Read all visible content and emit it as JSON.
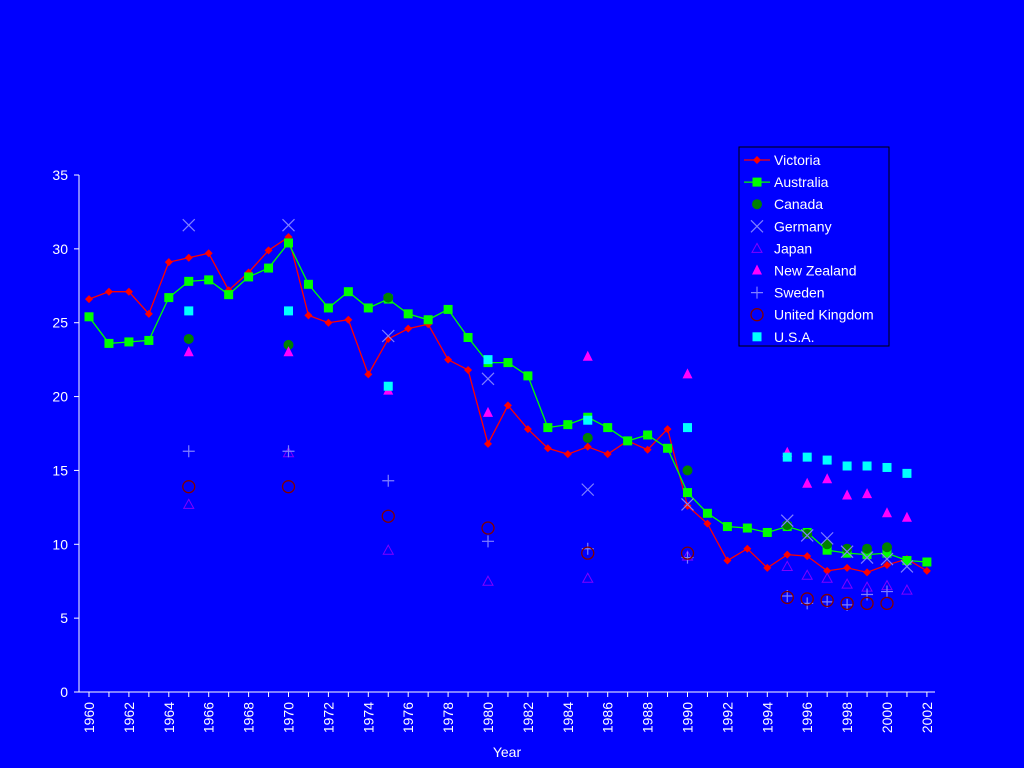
{
  "chart_data": {
    "type": "line",
    "title": "",
    "xlabel": "Year",
    "ylabel": "",
    "xlim": [
      1960,
      2002
    ],
    "ylim": [
      0,
      35
    ],
    "y_ticks": [
      0,
      5,
      10,
      15,
      20,
      25,
      30,
      35
    ],
    "x_ticks": [
      "1960",
      "1962",
      "1964",
      "1966",
      "1968",
      "1970",
      "1972",
      "1974",
      "1976",
      "1978",
      "1980",
      "1982",
      "1984",
      "1986",
      "1988",
      "1990",
      "1992",
      "1994",
      "1996",
      "1998",
      "2000",
      "2002"
    ],
    "grid": false,
    "legend_position": "top-right",
    "series": [
      {
        "name": "Victoria",
        "color": "#ff0000",
        "marker": "diamond",
        "line": true,
        "x": [
          1960,
          1961,
          1962,
          1963,
          1964,
          1965,
          1966,
          1967,
          1968,
          1969,
          1970,
          1971,
          1972,
          1973,
          1974,
          1975,
          1976,
          1977,
          1978,
          1979,
          1980,
          1981,
          1982,
          1983,
          1984,
          1985,
          1986,
          1987,
          1988,
          1989,
          1990,
          1991,
          1992,
          1993,
          1994,
          1995,
          1996,
          1997,
          1998,
          1999,
          2000,
          2001,
          2002
        ],
        "y": [
          26.6,
          27.1,
          27.1,
          25.6,
          29.1,
          29.4,
          29.7,
          27.2,
          28.4,
          29.9,
          30.8,
          25.5,
          25.0,
          25.2,
          21.5,
          23.9,
          24.6,
          24.9,
          22.5,
          21.8,
          16.8,
          19.4,
          17.8,
          16.5,
          16.1,
          16.6,
          16.1,
          17.0,
          16.4,
          17.8,
          12.6,
          11.4,
          8.9,
          9.7,
          8.4,
          9.3,
          9.2,
          8.2,
          8.4,
          8.1,
          8.6,
          9.0,
          8.2
        ]
      },
      {
        "name": "Australia",
        "color": "#00ff00",
        "marker": "square",
        "line": true,
        "x": [
          1960,
          1961,
          1962,
          1963,
          1964,
          1965,
          1966,
          1967,
          1968,
          1969,
          1970,
          1971,
          1972,
          1973,
          1974,
          1975,
          1976,
          1977,
          1978,
          1979,
          1980,
          1981,
          1982,
          1983,
          1984,
          1985,
          1986,
          1987,
          1988,
          1989,
          1990,
          1991,
          1992,
          1993,
          1994,
          1995,
          1996,
          1997,
          1998,
          1999,
          2000,
          2001,
          2002
        ],
        "y": [
          25.4,
          23.6,
          23.7,
          23.8,
          26.7,
          27.8,
          27.9,
          26.9,
          28.1,
          28.7,
          30.4,
          27.6,
          26.0,
          27.1,
          26.0,
          26.6,
          25.6,
          25.2,
          25.9,
          24.0,
          22.3,
          22.3,
          21.4,
          17.9,
          18.1,
          18.6,
          17.9,
          17.0,
          17.4,
          16.5,
          13.5,
          12.1,
          11.2,
          11.1,
          10.8,
          11.2,
          10.8,
          9.6,
          9.4,
          9.3,
          9.4,
          8.9,
          8.8
        ]
      },
      {
        "name": "Canada",
        "color": "#008000",
        "marker": "circle-filled",
        "line": false,
        "x": [
          1965,
          1970,
          1975,
          1985,
          1990,
          1995,
          1996,
          1997,
          1998,
          1999,
          2000
        ],
        "y": [
          23.9,
          23.5,
          26.7,
          17.2,
          15.0,
          11.3,
          10.7,
          10.0,
          9.7,
          9.7,
          9.8
        ]
      },
      {
        "name": "Germany",
        "color": "#8080ff",
        "marker": "x",
        "line": false,
        "x": [
          1965,
          1970,
          1975,
          1980,
          1985,
          1990,
          1995,
          1996,
          1997,
          1998,
          1999,
          2000,
          2001
        ],
        "y": [
          31.6,
          31.6,
          24.1,
          21.2,
          13.7,
          12.7,
          11.6,
          10.6,
          10.4,
          9.5,
          9.1,
          9.0,
          8.5
        ]
      },
      {
        "name": "Japan",
        "color": "#8000ff",
        "marker": "triangle-open",
        "line": false,
        "x": [
          1965,
          1970,
          1975,
          1980,
          1985,
          1990,
          1995,
          1996,
          1997,
          1998,
          1999,
          2000,
          2001
        ],
        "y": [
          12.7,
          16.2,
          9.6,
          7.5,
          7.7,
          9.2,
          8.5,
          7.9,
          7.7,
          7.3,
          7.1,
          7.2,
          6.9
        ]
      },
      {
        "name": "New Zealand",
        "color": "#ff00ff",
        "marker": "triangle-filled",
        "line": false,
        "x": [
          1965,
          1970,
          1975,
          1980,
          1985,
          1990,
          1995,
          1996,
          1997,
          1998,
          1999,
          2000,
          2001
        ],
        "y": [
          23.0,
          23.0,
          20.4,
          18.9,
          22.7,
          21.5,
          16.2,
          14.1,
          14.4,
          13.3,
          13.4,
          12.1,
          11.8
        ]
      },
      {
        "name": "Sweden",
        "color": "#8080ff",
        "marker": "plus",
        "line": false,
        "x": [
          1965,
          1970,
          1975,
          1980,
          1985,
          1990,
          1995,
          1996,
          1997,
          1998,
          1999,
          2000
        ],
        "y": [
          16.3,
          16.3,
          14.3,
          10.2,
          9.7,
          9.1,
          6.5,
          6.0,
          6.1,
          5.9,
          6.6,
          6.8
        ]
      },
      {
        "name": "United Kingdom",
        "color": "#800000",
        "marker": "circle-open",
        "line": false,
        "x": [
          1965,
          1970,
          1975,
          1980,
          1985,
          1990,
          1995,
          1996,
          1997,
          1998,
          1999,
          2000
        ],
        "y": [
          13.9,
          13.9,
          11.9,
          11.1,
          9.4,
          9.4,
          6.4,
          6.3,
          6.2,
          6.0,
          6.0,
          6.0
        ]
      },
      {
        "name": "U.S.A.",
        "color": "#00ffff",
        "marker": "square",
        "line": false,
        "x": [
          1965,
          1970,
          1975,
          1980,
          1985,
          1990,
          1995,
          1996,
          1997,
          1998,
          1999,
          2000,
          2001
        ],
        "y": [
          25.8,
          25.8,
          20.7,
          22.5,
          18.4,
          17.9,
          15.9,
          15.9,
          15.7,
          15.3,
          15.3,
          15.2,
          14.8
        ]
      }
    ]
  }
}
